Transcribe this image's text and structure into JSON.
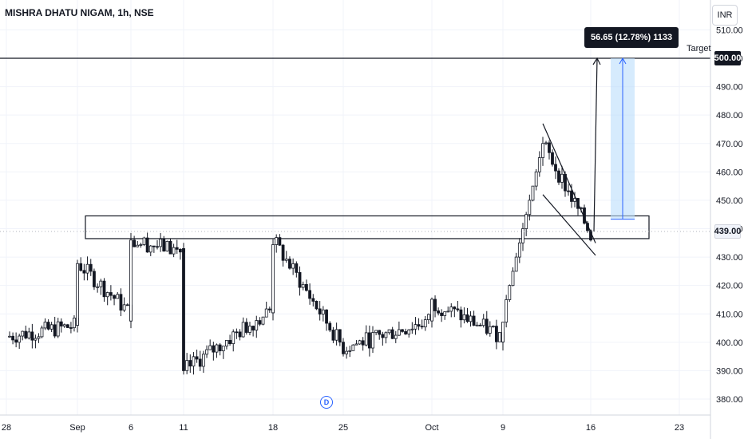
{
  "header": {
    "title": "MISHRA DHATU NIGAM, 1h, NSE",
    "currency": "INR"
  },
  "annotations": {
    "measure_text": "56.65 (12.78%) 1133",
    "target_label": "Target",
    "target_price_tag": "500.00",
    "last_price_tag": "439.00",
    "dividend_marker": "D"
  },
  "colors": {
    "candle": "#131722",
    "grid": "#f0f3fa",
    "axis_text": "#131722",
    "measure_fill": "#bbdefb",
    "measure_stroke": "#2962ff",
    "dividend": "#2962ff"
  },
  "chart_data": {
    "type": "candlestick",
    "title": "MISHRA DHATU NIGAM, 1h, NSE",
    "y_axis": {
      "ticks": [
        "380.00",
        "390.00",
        "400.00",
        "410.00",
        "420.00",
        "430.00",
        "440.00",
        "450.00",
        "460.00",
        "470.00",
        "480.00",
        "490.00",
        "500.00",
        "510.00"
      ],
      "range": [
        376,
        513
      ]
    },
    "x_axis": {
      "ticks": [
        "28",
        "Sep",
        "6",
        "11",
        "18",
        "25",
        "Oct",
        "9",
        "16",
        "23"
      ]
    },
    "levels": {
      "target": 500.0,
      "last_price": 439.0,
      "resistance_zone": [
        436.5,
        444.5
      ]
    },
    "price_path": [
      [
        "28",
        402
      ],
      [
        "Sep",
        406
      ],
      [
        "Sep",
        428
      ],
      [
        "6",
        410
      ],
      [
        "6",
        436
      ],
      [
        "11",
        432
      ],
      [
        "11",
        390
      ],
      [
        "18",
        412
      ],
      [
        "18",
        436
      ],
      [
        "25",
        398
      ],
      [
        "Oct",
        408
      ],
      [
        "Oct",
        414
      ],
      [
        "9",
        402
      ],
      [
        "9",
        410
      ],
      [
        "12",
        470
      ],
      [
        "16",
        438
      ]
    ],
    "falling_wedge": {
      "upper": [
        [
          "12",
          477
        ],
        [
          "16",
          440
        ]
      ],
      "lower": [
        [
          "12",
          452
        ],
        [
          "16",
          434
        ]
      ]
    },
    "measure": {
      "from": 443.35,
      "to": 500.0,
      "change": 56.65,
      "change_pct": 12.78,
      "bars": 1133
    },
    "grid": true
  }
}
